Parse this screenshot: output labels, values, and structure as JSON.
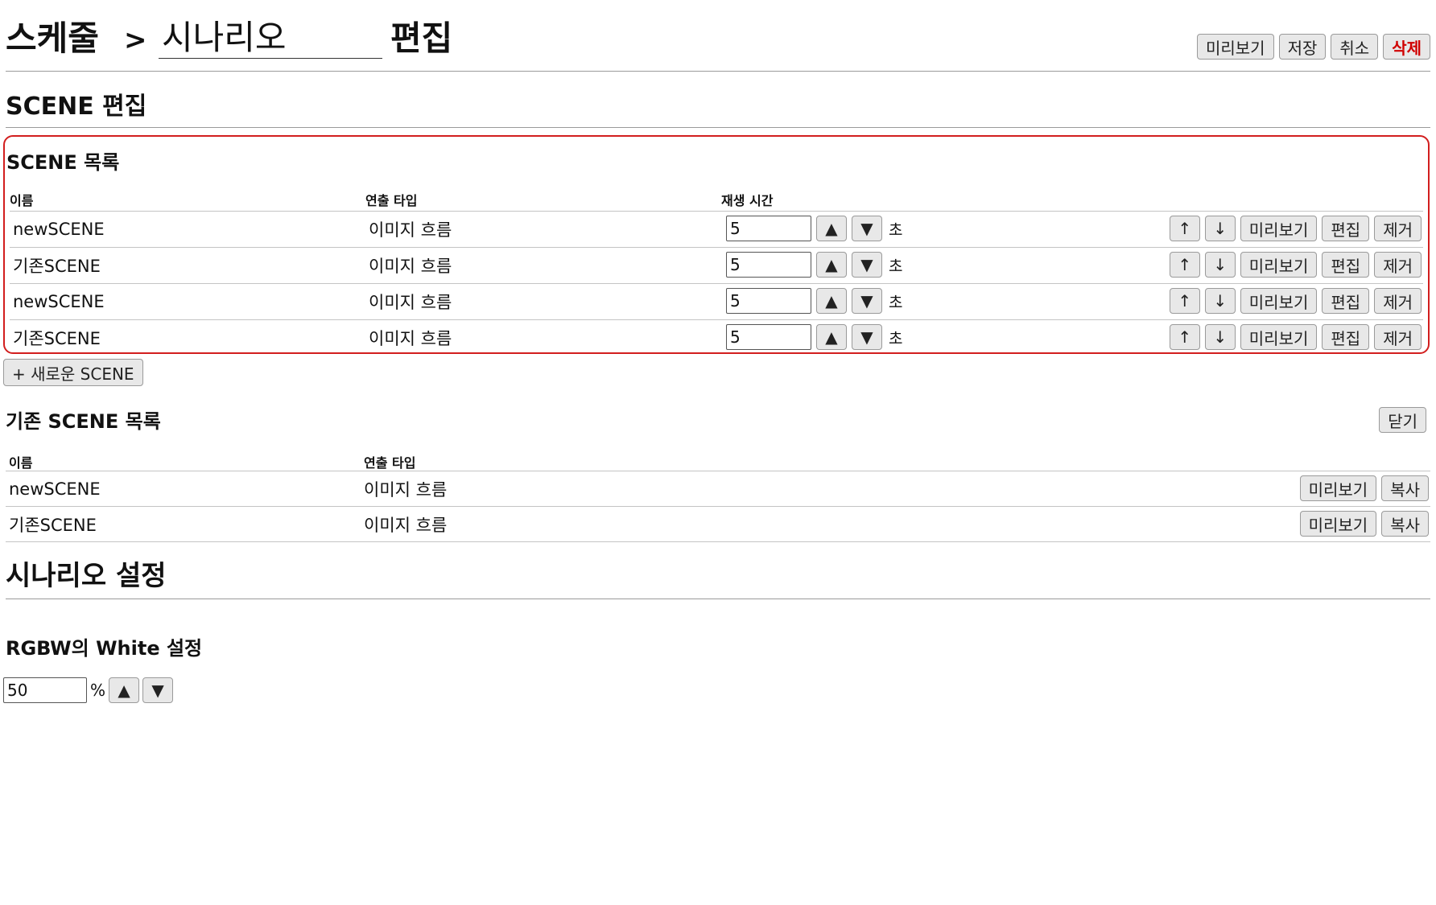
{
  "header": {
    "breadcrumb_root": "스케줄",
    "breadcrumb_sep": ">",
    "scenario_name": "시나리오",
    "edit_label": "편집",
    "actions": {
      "preview": "미리보기",
      "save": "저장",
      "cancel": "취소",
      "delete": "삭제"
    }
  },
  "scene_edit": {
    "title": "SCENE 편집",
    "list_title": "SCENE 목록",
    "columns": {
      "name": "이름",
      "effect_type": "연출 타입",
      "play_time": "재생 시간"
    },
    "unit": "초",
    "row_actions": {
      "up": "↑",
      "down": "↓",
      "preview": "미리보기",
      "edit": "편집",
      "remove": "제거"
    },
    "stepper": {
      "up": "▲",
      "down": "▼"
    },
    "rows": [
      {
        "name": "newSCENE",
        "effect_type": "이미지 흐름",
        "play_time": "5"
      },
      {
        "name": "기존SCENE",
        "effect_type": "이미지 흐름",
        "play_time": "5"
      },
      {
        "name": "newSCENE",
        "effect_type": "이미지 흐름",
        "play_time": "5"
      },
      {
        "name": "기존SCENE",
        "effect_type": "이미지 흐름",
        "play_time": "5"
      }
    ],
    "add_button": "+ 새로운 SCENE"
  },
  "existing_scenes": {
    "title": "기존 SCENE 목록",
    "close": "닫기",
    "columns": {
      "name": "이름",
      "effect_type": "연출 타입"
    },
    "row_actions": {
      "preview": "미리보기",
      "copy": "복사"
    },
    "rows": [
      {
        "name": "newSCENE",
        "effect_type": "이미지 흐름"
      },
      {
        "name": "기존SCENE",
        "effect_type": "이미지 흐름"
      }
    ]
  },
  "scenario_settings": {
    "title": "시나리오 설정",
    "white_title": "RGBW의 White 설정",
    "white_value": "50",
    "white_unit": "%",
    "stepper": {
      "up": "▲",
      "down": "▼"
    }
  },
  "colors": {
    "accent_border": "#d21e1e",
    "danger_text": "#d00000",
    "button_bg": "#e8e8e8"
  }
}
